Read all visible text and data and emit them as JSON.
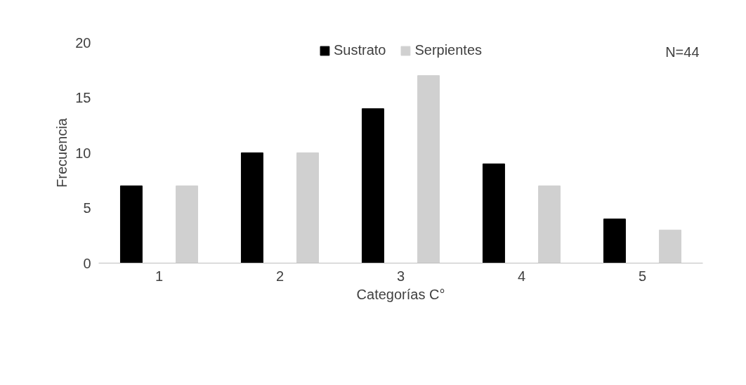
{
  "chart_data": {
    "type": "bar",
    "xlabel": "Categorías C°",
    "ylabel": "Frecuencia",
    "categories": [
      "1",
      "2",
      "3",
      "4",
      "5"
    ],
    "series": [
      {
        "name": "Sustrato",
        "color": "#000000",
        "values": [
          7,
          10,
          14,
          9,
          4
        ]
      },
      {
        "name": "Serpientes",
        "color": "#d0d0d0",
        "values": [
          7,
          10,
          17,
          7,
          3
        ]
      }
    ],
    "ylim": [
      0,
      20
    ],
    "yticks": [
      0,
      5,
      10,
      15,
      20
    ],
    "grid": false,
    "legend": "top",
    "annotations": [
      "N=44"
    ]
  }
}
